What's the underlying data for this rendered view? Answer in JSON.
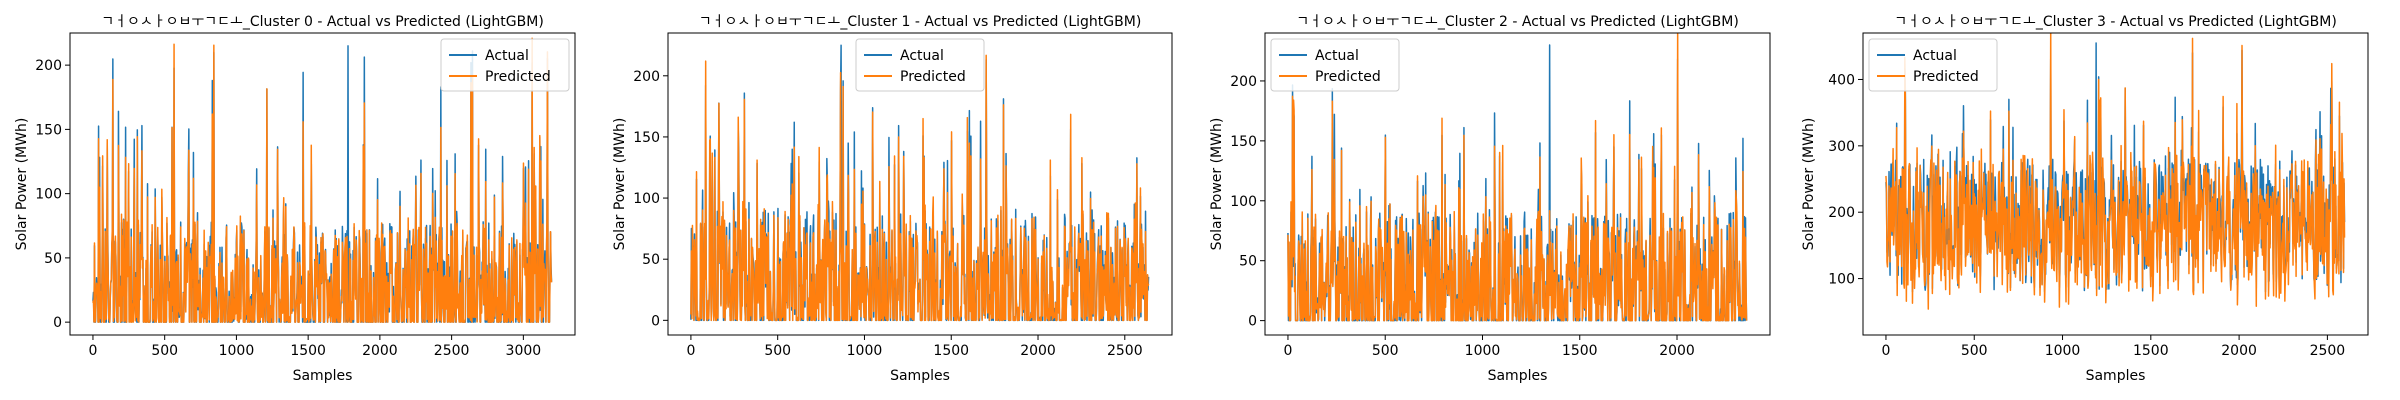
{
  "chart_data": [
    {
      "type": "line",
      "title": "ㄱㅓㅇㅅㅏㅇㅂㅜㄱㄷㅗ_Cluster 0 - Actual vs Predicted (LightGBM)",
      "xlabel": "Samples",
      "ylabel": "Solar Power (MWh)",
      "xlim": [
        -160,
        3360
      ],
      "ylim": [
        -10,
        225
      ],
      "xticks": [
        0,
        500,
        1000,
        1500,
        2000,
        2500,
        3000
      ],
      "yticks": [
        0,
        50,
        100,
        150,
        200
      ],
      "legend": "top-right",
      "n_samples": 3200,
      "baseline_mean": 30,
      "spike_max": 215,
      "series": [
        {
          "name": "Actual",
          "color": "#1f77b4"
        },
        {
          "name": "Predicted",
          "color": "#ff7f0e"
        }
      ]
    },
    {
      "type": "line",
      "title": "ㄱㅓㅇㅅㅏㅇㅂㅜㄱㄷㅗ_Cluster 1 - Actual vs Predicted (LightGBM)",
      "xlabel": "Samples",
      "ylabel": "Solar Power (MWh)",
      "xlim": [
        -132,
        2772
      ],
      "ylim": [
        -12,
        235
      ],
      "xticks": [
        0,
        500,
        1000,
        1500,
        2000,
        2500
      ],
      "yticks": [
        0,
        50,
        100,
        150,
        200
      ],
      "legend": "top-center",
      "n_samples": 2640,
      "baseline_mean": 35,
      "spike_max": 225,
      "series": [
        {
          "name": "Actual",
          "color": "#1f77b4"
        },
        {
          "name": "Predicted",
          "color": "#ff7f0e"
        }
      ]
    },
    {
      "type": "line",
      "title": "ㄱㅓㅇㅅㅏㅇㅂㅜㄱㄷㅗ_Cluster 2 - Actual vs Predicted (LightGBM)",
      "xlabel": "Samples",
      "ylabel": "Solar Power (MWh)",
      "xlim": [
        -118,
        2478
      ],
      "ylim": [
        -12,
        240
      ],
      "xticks": [
        0,
        500,
        1000,
        1500,
        2000
      ],
      "yticks": [
        0,
        50,
        100,
        150,
        200
      ],
      "legend": "top-left",
      "n_samples": 2360,
      "baseline_mean": 35,
      "spike_max": 230,
      "series": [
        {
          "name": "Actual",
          "color": "#1f77b4"
        },
        {
          "name": "Predicted",
          "color": "#ff7f0e"
        }
      ]
    },
    {
      "type": "line",
      "title": "ㄱㅓㅇㅅㅏㅇㅂㅜㄱㄷㅗ_Cluster 3 - Actual vs Predicted (LightGBM)",
      "xlabel": "Samples",
      "ylabel": "Solar Power (MWh)",
      "xlim": [
        -130,
        2730
      ],
      "ylim": [
        15,
        470
      ],
      "xticks": [
        0,
        500,
        1000,
        1500,
        2000,
        2500
      ],
      "yticks": [
        100,
        200,
        300,
        400
      ],
      "legend": "top-left",
      "n_samples": 2600,
      "baseline_mean": 180,
      "spike_max": 455,
      "series": [
        {
          "name": "Actual",
          "color": "#1f77b4"
        },
        {
          "name": "Predicted",
          "color": "#ff7f0e"
        }
      ]
    }
  ]
}
